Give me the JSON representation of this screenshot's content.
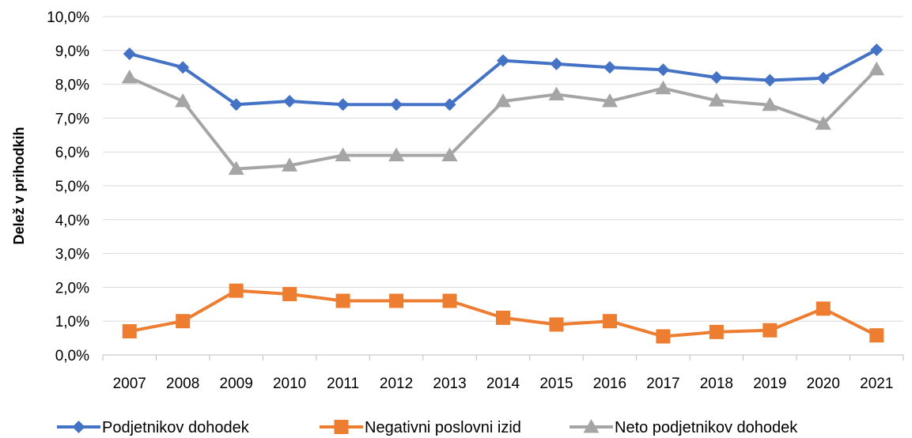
{
  "chart_data": {
    "type": "line",
    "ylabel": "Delež v prihodkih",
    "xlabel": "",
    "title": "",
    "categories": [
      "2007",
      "2008",
      "2009",
      "2010",
      "2011",
      "2012",
      "2013",
      "2014",
      "2015",
      "2016",
      "2017",
      "2018",
      "2019",
      "2020",
      "2021"
    ],
    "ylim": [
      0,
      10
    ],
    "yticks": [
      "0,0%",
      "1,0%",
      "2,0%",
      "3,0%",
      "4,0%",
      "5,0%",
      "6,0%",
      "7,0%",
      "8,0%",
      "9,0%",
      "10,0%"
    ],
    "grid": true,
    "legend_position": "bottom",
    "series": [
      {
        "name": "Podjetnikov dohodek",
        "color": "#4472C4",
        "marker": "diamond",
        "values": [
          8.9,
          8.5,
          7.4,
          7.5,
          7.4,
          7.4,
          7.4,
          8.7,
          8.6,
          8.5,
          8.43,
          8.2,
          8.12,
          8.18,
          9.02
        ]
      },
      {
        "name": "Negativni poslovni izid",
        "color": "#ED7D31",
        "marker": "square",
        "values": [
          0.7,
          1.0,
          1.9,
          1.8,
          1.6,
          1.6,
          1.6,
          1.1,
          0.9,
          1.0,
          0.55,
          0.68,
          0.73,
          1.37,
          0.58
        ]
      },
      {
        "name": "Neto podjetnikov dohodek",
        "color": "#A5A5A5",
        "marker": "triangle",
        "values": [
          8.2,
          7.5,
          5.5,
          5.6,
          5.9,
          5.9,
          5.9,
          7.5,
          7.7,
          7.5,
          7.88,
          7.52,
          7.39,
          6.83,
          8.44
        ]
      }
    ]
  }
}
